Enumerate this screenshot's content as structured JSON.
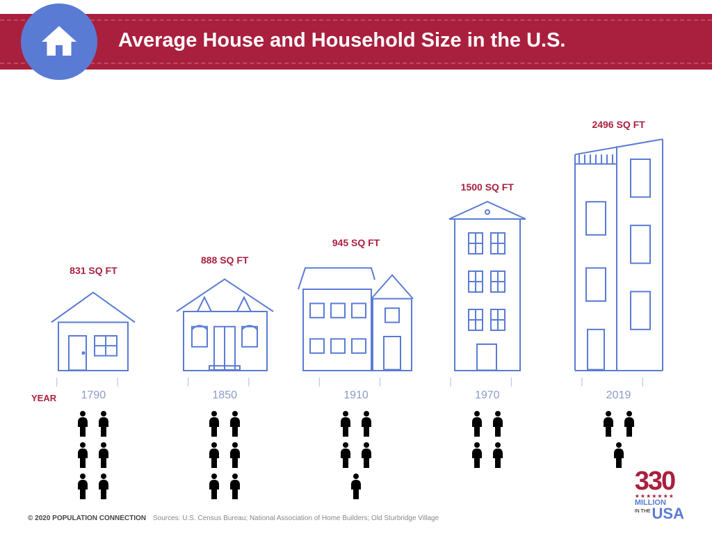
{
  "header": {
    "title": "Average House and Household Size in the U.S.",
    "band_color": "#a9203e",
    "circle_color": "#5a7bd4",
    "icon": "house-icon"
  },
  "chart": {
    "type": "infographic",
    "stroke_color": "#5a7bd4",
    "accent_color": "#a9203e",
    "muted_color": "#8a9bc4",
    "year_label": "YEAR",
    "columns": [
      {
        "year": "1790",
        "sqft_label": "831 SQ FT",
        "house_height": 130,
        "house_variant": "small-house",
        "people_full": 5,
        "people_half": 1
      },
      {
        "year": "1850",
        "sqft_label": "888 SQ FT",
        "house_height": 145,
        "house_variant": "dormer-house",
        "people_full": 5,
        "people_half": 1
      },
      {
        "year": "1910",
        "sqft_label": "945 SQ FT",
        "house_height": 170,
        "house_variant": "duplex-house",
        "people_full": 4,
        "people_half": 1
      },
      {
        "year": "1970",
        "sqft_label": "1500 SQ FT",
        "house_height": 250,
        "house_variant": "pediment-tower",
        "people_full": 3,
        "people_half": 1
      },
      {
        "year": "2019",
        "sqft_label": "2496 SQ FT",
        "house_height": 340,
        "house_variant": "modern-tower",
        "people_full": 2,
        "people_half": 1
      }
    ]
  },
  "footer": {
    "copyright": "© 2020 POPULATION CONNECTION",
    "sources": "Sources: U.S. Census Bureau; National Association of Home Builders; Old Sturbridge Village",
    "logo": {
      "number": "330",
      "word": "MILLION",
      "inthe": "IN THE",
      "country": "USA"
    }
  }
}
